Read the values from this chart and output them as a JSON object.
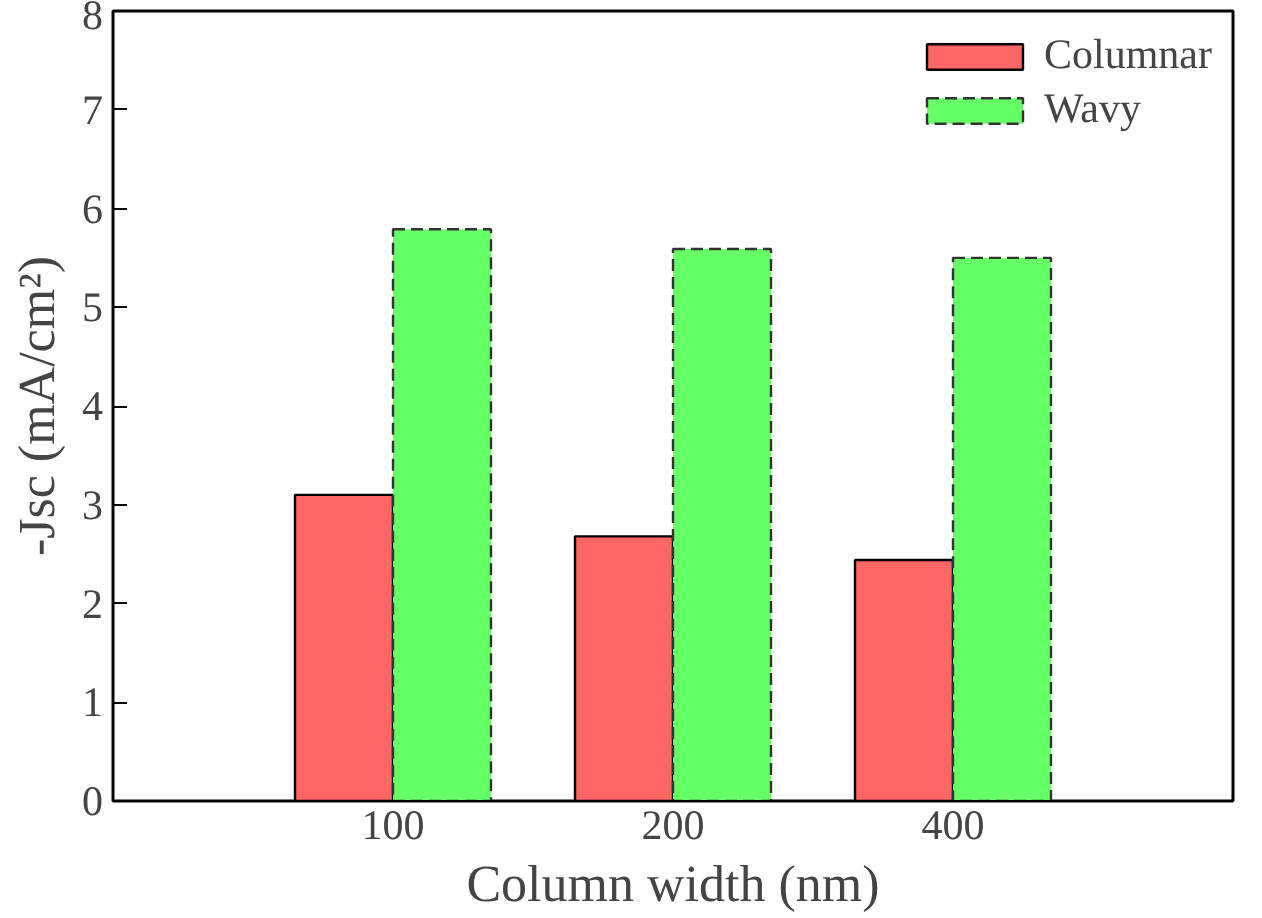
{
  "chart_data": {
    "type": "bar",
    "xlabel": "Column width (nm)",
    "ylabel": "-Jsc (mA/cm²)",
    "categories": [
      "100",
      "200",
      "400"
    ],
    "series": [
      {
        "name": "Columnar",
        "color": "#ff6666",
        "values": [
          3.1,
          2.68,
          2.44
        ]
      },
      {
        "name": "Wavy",
        "color": "#66ff66",
        "values": [
          5.79,
          5.59,
          5.5
        ],
        "line_style": "dashed"
      }
    ],
    "ylim": [
      0,
      8
    ],
    "yticks": [
      0,
      1,
      2,
      3,
      4,
      5,
      6,
      7,
      8
    ],
    "grid": false,
    "legend": "top right"
  }
}
